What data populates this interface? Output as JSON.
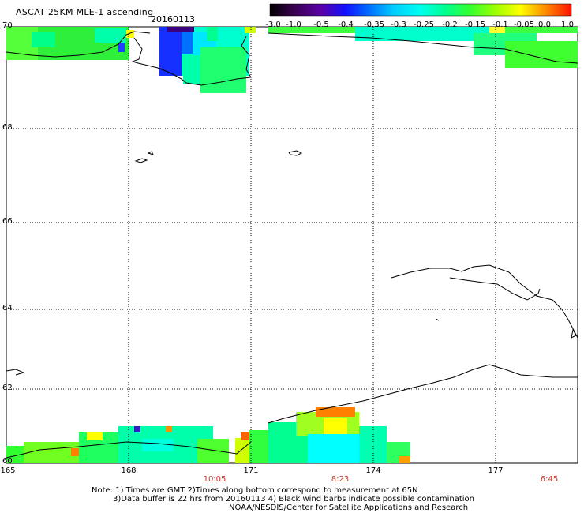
{
  "title": "ASCAT 25KM MLE-1 ascending",
  "date": "20160113",
  "colorbar": {
    "labels": [
      "-3.0",
      "-1.0",
      "-0.5",
      "-0.4",
      "-0.35",
      "-0.3",
      "-0.25",
      "-0.2",
      "-0.15",
      "-0.1",
      "-0.05",
      "0.0",
      "1.0"
    ],
    "colors": [
      "#000000",
      "#3a0050",
      "#5a00a8",
      "#2020ff",
      "#0060ff",
      "#00b0ff",
      "#00ffff",
      "#00ffa0",
      "#00ff50",
      "#40ff00",
      "#a0ff00",
      "#ffff00",
      "#ffa000",
      "#ff5000",
      "#ff0000"
    ]
  },
  "axes": {
    "lat_labels": [
      "70",
      "68",
      "66",
      "64",
      "62",
      "60"
    ],
    "lon_labels": [
      "165",
      "168",
      "171",
      "174",
      "177"
    ],
    "times": [
      "10:05",
      "8:23",
      "6:45"
    ]
  },
  "notes": [
    "Note: 1) Times are GMT 2)Times along bottom correspond to measurement at 65N",
    "3)Data buffer is 22 hrs from 20160113 4) Black wind barbs indicate possible contamination",
    "NOAA/NESDIS/Center for Satellite Applications and Research"
  ]
}
